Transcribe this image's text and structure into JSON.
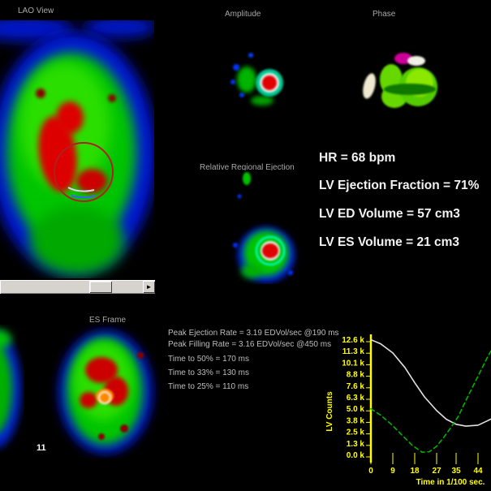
{
  "header": {
    "lao_view_label": "LAO View",
    "amplitude_label": "Amplitude",
    "phase_label": "Phase"
  },
  "mid": {
    "relative_regional_ejection_label": "Relative Regional Ejection"
  },
  "stats": {
    "hr": "HR = 68 bpm",
    "lv_ef": "LV Ejection Fraction = 71%",
    "lv_ed_volume": "LV ED Volume = 57 cm3",
    "lv_es_volume": "LV ES Volume = 21 cm3"
  },
  "bottom": {
    "es_frame_label": "ES Frame",
    "frame_number": "11",
    "measurements": [
      "Peak Ejection Rate = 3.19 EDVol/sec @190 ms",
      "Peak Filling Rate = 3.16 EDVol/sec @450 ms",
      "Time to 50% = 170 ms",
      "Time to 33% = 130 ms",
      "Time to 25% = 110 ms"
    ]
  },
  "icons": {
    "scroll_right_arrow": "►"
  },
  "colors": {
    "background": "#000000",
    "label_text": "#a8a8a8",
    "stats_text": "#f2f2f2",
    "measure_text": "#bdbdbd",
    "chart_axis": "#ffff00",
    "scrollbar_face": "#d6d3ce"
  },
  "chart_data": {
    "type": "line",
    "title": "",
    "xlabel": "Time in 1/100 sec.",
    "ylabel": "LV Counts",
    "x_ticks": [
      0,
      9,
      18,
      27,
      35,
      44,
      53
    ],
    "y_tick_labels": [
      "12.6 k",
      "11.3 k",
      "10.1 k",
      "8.8 k",
      "7.6 k",
      "6.3 k",
      "5.0 k",
      "3.8 k",
      "2.5 k",
      "1.3 k",
      "0.0 k"
    ],
    "xlim": [
      0,
      55
    ],
    "ylim": [
      0,
      12600
    ],
    "grid": false,
    "legend": "none",
    "axis_color": "#ffff00",
    "series": [
      {
        "name": "white-solid-curve",
        "color": "#e2e2e2",
        "style": "solid",
        "x": [
          0,
          4,
          9,
          14,
          18,
          22,
          27,
          31,
          35,
          39,
          44,
          48,
          51
        ],
        "y": [
          12550,
          12100,
          11100,
          9500,
          7850,
          6300,
          4800,
          3850,
          3300,
          3100,
          3200,
          3700,
          4100
        ]
      },
      {
        "name": "green-dashed-curve",
        "color": "#00b400",
        "style": "dashed",
        "x": [
          0,
          4,
          9,
          13,
          17,
          21,
          24,
          27,
          30,
          33,
          36,
          39,
          42,
          45,
          48,
          51
        ],
        "y": [
          5000,
          4300,
          3150,
          2050,
          1000,
          250,
          300,
          900,
          1900,
          3000,
          4200,
          5900,
          7500,
          9100,
          10700,
          12100
        ]
      }
    ]
  }
}
